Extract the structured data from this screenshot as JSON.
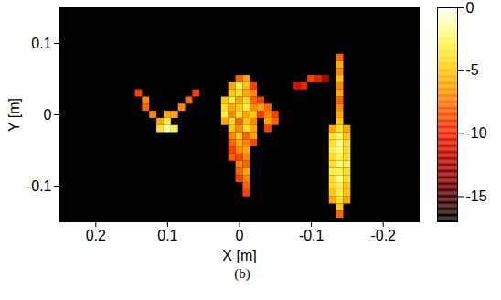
{
  "chart_data": {
    "type": "heatmap",
    "caption": "(b)",
    "x_label": "X [m]",
    "y_label": "Y [m]",
    "xlim": [
      0.25,
      -0.25
    ],
    "xticks": [
      0.2,
      0.1,
      0,
      -0.1,
      -0.2
    ],
    "ylim": [
      -0.15,
      0.15
    ],
    "yticks": [
      -0.1,
      0,
      0.1
    ],
    "grid": false,
    "cell_size": 0.01,
    "colorbar_range": [
      -17,
      0
    ],
    "colorbar_ticks": [
      0,
      -5,
      -10,
      -15
    ],
    "cells": [
      [
        0.14,
        0.03,
        -9
      ],
      [
        0.13,
        0.02,
        -7
      ],
      [
        0.13,
        0.01,
        -8
      ],
      [
        0.12,
        0.0,
        -7
      ],
      [
        0.11,
        -0.01,
        -6
      ],
      [
        0.06,
        0.03,
        -9
      ],
      [
        0.07,
        0.02,
        -8
      ],
      [
        0.08,
        0.01,
        -7
      ],
      [
        0.09,
        0.0,
        -6
      ],
      [
        0.1,
        -0.01,
        -3
      ],
      [
        0.1,
        -0.02,
        -1
      ],
      [
        0.09,
        -0.02,
        -3
      ],
      [
        0.11,
        -0.02,
        -4
      ],
      [
        0.1,
        0.0,
        -6
      ],
      [
        0.0,
        0.05,
        -8
      ],
      [
        -0.01,
        0.05,
        -6
      ],
      [
        0.01,
        0.04,
        -6
      ],
      [
        0.0,
        0.04,
        -3
      ],
      [
        -0.01,
        0.04,
        -5
      ],
      [
        -0.02,
        0.04,
        -9
      ],
      [
        0.01,
        0.03,
        -5
      ],
      [
        0.0,
        0.03,
        -4
      ],
      [
        -0.01,
        0.03,
        -6
      ],
      [
        -0.02,
        0.03,
        -7
      ],
      [
        0.02,
        0.02,
        -5
      ],
      [
        0.01,
        0.02,
        -3
      ],
      [
        0.0,
        0.02,
        -6
      ],
      [
        -0.01,
        0.02,
        -4
      ],
      [
        -0.02,
        0.02,
        -8
      ],
      [
        -0.03,
        0.02,
        -9
      ],
      [
        0.02,
        0.01,
        -4
      ],
      [
        0.01,
        0.01,
        -6
      ],
      [
        0.0,
        0.01,
        -5
      ],
      [
        -0.01,
        0.01,
        -3
      ],
      [
        -0.02,
        0.01,
        -7
      ],
      [
        -0.03,
        0.01,
        -6
      ],
      [
        -0.04,
        0.01,
        -8
      ],
      [
        0.02,
        0.0,
        -3
      ],
      [
        0.01,
        0.0,
        -7
      ],
      [
        0.0,
        0.0,
        -4
      ],
      [
        -0.01,
        0.0,
        -6
      ],
      [
        -0.02,
        0.0,
        -5
      ],
      [
        -0.03,
        0.0,
        -9
      ],
      [
        -0.04,
        0.0,
        -7
      ],
      [
        -0.05,
        0.0,
        -9
      ],
      [
        0.02,
        -0.01,
        -6
      ],
      [
        0.01,
        -0.01,
        -4
      ],
      [
        0.0,
        -0.01,
        -8
      ],
      [
        -0.01,
        -0.01,
        -5
      ],
      [
        -0.02,
        -0.01,
        -7
      ],
      [
        -0.04,
        -0.01,
        -6
      ],
      [
        -0.05,
        -0.01,
        -8
      ],
      [
        0.01,
        -0.02,
        -5
      ],
      [
        0.0,
        -0.02,
        -7
      ],
      [
        -0.01,
        -0.02,
        -4
      ],
      [
        -0.02,
        -0.02,
        -6
      ],
      [
        -0.04,
        -0.02,
        -9
      ],
      [
        0.01,
        -0.03,
        -7
      ],
      [
        0.0,
        -0.03,
        -5
      ],
      [
        -0.01,
        -0.03,
        -8
      ],
      [
        -0.02,
        -0.03,
        -6
      ],
      [
        0.01,
        -0.04,
        -8
      ],
      [
        0.0,
        -0.04,
        -6
      ],
      [
        -0.01,
        -0.04,
        -7
      ],
      [
        -0.02,
        -0.04,
        -9
      ],
      [
        0.01,
        -0.05,
        -9
      ],
      [
        0.0,
        -0.05,
        -7
      ],
      [
        -0.01,
        -0.05,
        -6
      ],
      [
        0.01,
        -0.06,
        -8
      ],
      [
        0.0,
        -0.06,
        -9
      ],
      [
        -0.01,
        -0.06,
        -7
      ],
      [
        0.0,
        -0.07,
        -7
      ],
      [
        -0.01,
        -0.07,
        -8
      ],
      [
        0.0,
        -0.08,
        -8
      ],
      [
        -0.01,
        -0.08,
        -6
      ],
      [
        0.0,
        -0.09,
        -9
      ],
      [
        -0.01,
        -0.09,
        -7
      ],
      [
        -0.01,
        -0.1,
        -8
      ],
      [
        -0.01,
        -0.11,
        -9
      ],
      [
        -0.08,
        0.04,
        -11
      ],
      [
        -0.09,
        0.04,
        -10
      ],
      [
        -0.1,
        0.05,
        -9
      ],
      [
        -0.11,
        0.05,
        -10
      ],
      [
        -0.12,
        0.05,
        -12
      ],
      [
        -0.14,
        0.08,
        -8
      ],
      [
        -0.14,
        0.07,
        -6
      ],
      [
        -0.14,
        0.06,
        -7
      ],
      [
        -0.14,
        0.05,
        -5
      ],
      [
        -0.14,
        0.04,
        -7
      ],
      [
        -0.14,
        0.03,
        -6
      ],
      [
        -0.14,
        0.02,
        -8
      ],
      [
        -0.14,
        0.01,
        -7
      ],
      [
        -0.14,
        0.0,
        -6
      ],
      [
        -0.14,
        -0.01,
        -5
      ],
      [
        -0.13,
        -0.02,
        -6
      ],
      [
        -0.14,
        -0.02,
        -4
      ],
      [
        -0.15,
        -0.02,
        -6
      ],
      [
        -0.13,
        -0.03,
        -4
      ],
      [
        -0.14,
        -0.03,
        -3
      ],
      [
        -0.15,
        -0.03,
        -5
      ],
      [
        -0.13,
        -0.04,
        -4
      ],
      [
        -0.14,
        -0.04,
        -2
      ],
      [
        -0.15,
        -0.04,
        -4
      ],
      [
        -0.13,
        -0.05,
        -3
      ],
      [
        -0.14,
        -0.05,
        -2
      ],
      [
        -0.15,
        -0.05,
        -4
      ],
      [
        -0.13,
        -0.06,
        -4
      ],
      [
        -0.14,
        -0.06,
        -3
      ],
      [
        -0.15,
        -0.06,
        -4
      ],
      [
        -0.13,
        -0.07,
        -4
      ],
      [
        -0.14,
        -0.07,
        -2
      ],
      [
        -0.15,
        -0.07,
        -3
      ],
      [
        -0.13,
        -0.08,
        -3
      ],
      [
        -0.14,
        -0.08,
        -3
      ],
      [
        -0.15,
        -0.08,
        -4
      ],
      [
        -0.13,
        -0.09,
        -4
      ],
      [
        -0.14,
        -0.09,
        -2
      ],
      [
        -0.15,
        -0.09,
        -4
      ],
      [
        -0.13,
        -0.1,
        -4
      ],
      [
        -0.14,
        -0.1,
        -3
      ],
      [
        -0.15,
        -0.1,
        -5
      ],
      [
        -0.13,
        -0.11,
        -5
      ],
      [
        -0.14,
        -0.11,
        -3
      ],
      [
        -0.15,
        -0.11,
        -5
      ],
      [
        -0.13,
        -0.12,
        -6
      ],
      [
        -0.14,
        -0.12,
        -4
      ],
      [
        -0.15,
        -0.12,
        -6
      ],
      [
        -0.14,
        -0.13,
        -5
      ],
      [
        -0.14,
        -0.14,
        -8
      ]
    ]
  }
}
